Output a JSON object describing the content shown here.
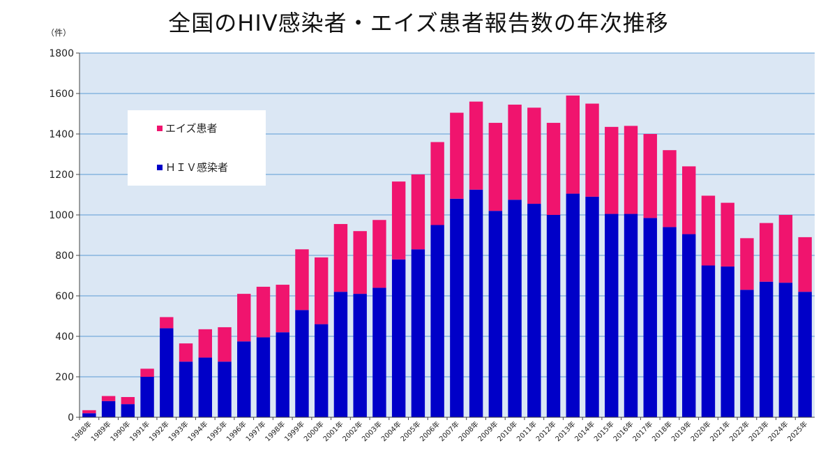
{
  "title": "全国のHIV感染者・エイズ患者報告数の年次推移",
  "unit_label": "（件）",
  "colors": {
    "plot_background": "#dbe7f4",
    "gridline": "#5b9bd5",
    "hiv": "#0000c8",
    "aids": "#f0146e"
  },
  "chart_data": {
    "type": "bar",
    "stacked": true,
    "title": "全国のHIV感染者・エイズ患者報告数の年次推移",
    "ylabel": "（件）",
    "ylim": [
      0,
      1800
    ],
    "yticks": [
      0,
      200,
      400,
      600,
      800,
      1000,
      1200,
      1400,
      1600,
      1800
    ],
    "grid": true,
    "legend_position": "top-left",
    "categories": [
      "1988年",
      "1989年",
      "1990年",
      "1991年",
      "1992年",
      "1993年",
      "1994年",
      "1995年",
      "1996年",
      "1997年",
      "1998年",
      "1999年",
      "2000年",
      "2001年",
      "2002年",
      "2003年",
      "2004年",
      "2005年",
      "2006年",
      "2007年",
      "2008年",
      "2009年",
      "2010年",
      "2011年",
      "2012年",
      "2013年",
      "2014年",
      "2015年",
      "2016年",
      "2017年",
      "2018年",
      "2019年",
      "2020年",
      "2021年",
      "2022年",
      "2023年",
      "2024年",
      "2025年"
    ],
    "series": [
      {
        "name": "ＨＩＶ感染者",
        "color": "#0000c8",
        "values": [
          20,
          80,
          65,
          200,
          440,
          275,
          295,
          275,
          375,
          395,
          420,
          530,
          460,
          620,
          610,
          640,
          780,
          830,
          950,
          1080,
          1125,
          1020,
          1075,
          1055,
          1000,
          1105,
          1090,
          1005,
          1005,
          985,
          940,
          905,
          750,
          745,
          630,
          670,
          665,
          620
        ]
      },
      {
        "name": "エイズ患者",
        "color": "#f0146e",
        "values": [
          15,
          25,
          35,
          40,
          55,
          90,
          140,
          170,
          235,
          250,
          235,
          300,
          330,
          335,
          310,
          335,
          385,
          370,
          410,
          425,
          435,
          435,
          470,
          475,
          455,
          485,
          460,
          430,
          435,
          415,
          380,
          335,
          345,
          315,
          255,
          290,
          335,
          270
        ]
      }
    ],
    "legend_entries": [
      "エイズ患者",
      "ＨＩＶ感染者"
    ]
  }
}
